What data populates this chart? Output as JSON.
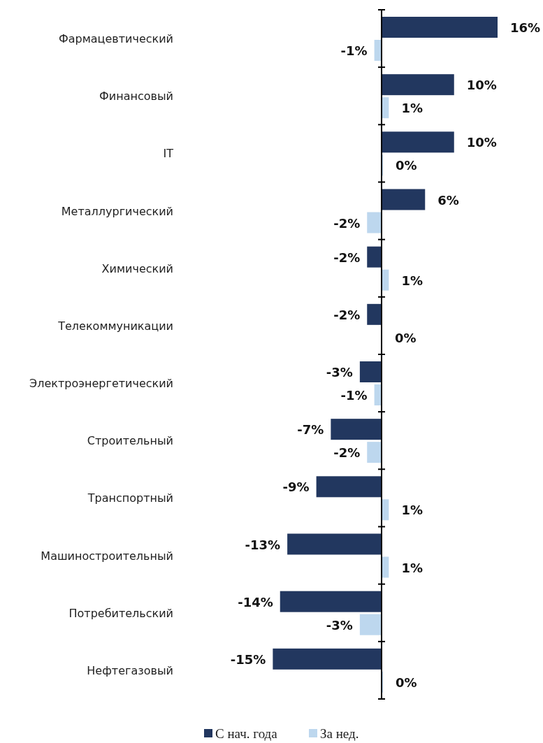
{
  "chart_data": {
    "type": "bar",
    "orientation": "horizontal",
    "categories": [
      "Фармацевтический",
      "Финансовый",
      "IT",
      "Металлургический",
      "Химический",
      "Телекоммуникации",
      "Электроэнергетический",
      "Строительный",
      "Транспортный",
      "Машиностроительный",
      "Потребительский",
      "Нефтегазовый"
    ],
    "series": [
      {
        "name": "С нач. года",
        "color": "#22375f",
        "values": [
          16,
          10,
          10,
          6,
          -2,
          -2,
          -3,
          -7,
          -9,
          -13,
          -14,
          -15
        ],
        "value_labels": [
          "16%",
          "10%",
          "10%",
          "6%",
          "-2%",
          "-2%",
          "-3%",
          "-7%",
          "-9%",
          "-13%",
          "-14%",
          "-15%"
        ]
      },
      {
        "name": "За нед.",
        "color": "#bdd7ee",
        "values": [
          -1,
          1,
          0.2,
          -2,
          1,
          0.1,
          -1,
          -2,
          1,
          1,
          -3,
          0.2
        ],
        "value_labels": [
          "-1%",
          "1%",
          "0%",
          "-2%",
          "1%",
          "0%",
          "-1%",
          "-2%",
          "1%",
          "1%",
          "-3%",
          "0%"
        ]
      }
    ],
    "legend": "bottom"
  }
}
